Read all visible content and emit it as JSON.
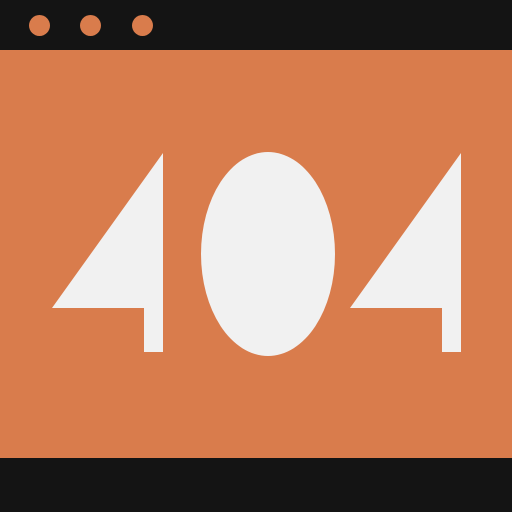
{
  "window": {
    "titlebar": {
      "dots": [
        "dot-1",
        "dot-2",
        "dot-3"
      ]
    }
  },
  "content": {
    "code": "404"
  },
  "colors": {
    "frame": "#141414",
    "accent": "#D97C4C",
    "glyph": "#F1F1F1"
  }
}
